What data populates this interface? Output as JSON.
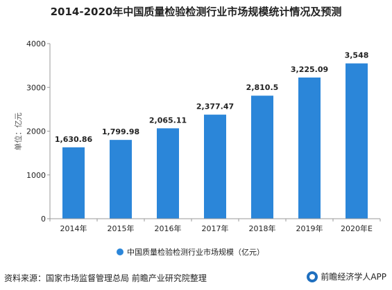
{
  "page": {
    "title": "2014-2020年中国质量检验检测行业市场规模统计情况及预测",
    "source": "资料来源：国家市场监督管理总局 前瞻产业研究院整理",
    "brand": "前瞻经济学人APP"
  },
  "colors": {
    "bar": "#2b86d9",
    "axis": "#999999",
    "grid": "#e6e6e6",
    "text": "#222222"
  },
  "chart_data": {
    "type": "bar",
    "title": "2014-2020年中国质量检验检测行业市场规模统计情况及预测",
    "ylabel": "单位：亿元",
    "ylim": [
      0,
      4000
    ],
    "yticks": [
      0,
      1000,
      2000,
      3000,
      4000
    ],
    "categories": [
      "2014年",
      "2015年",
      "2016年",
      "2017年",
      "2018年",
      "2019年",
      "2020年E"
    ],
    "series": [
      {
        "name": "中国质量检验检测行业市场规模（亿元）",
        "values": [
          1630.86,
          1799.98,
          2065.11,
          2377.47,
          2810.5,
          3225.09,
          3548
        ],
        "labels": [
          "1,630.86",
          "1,799.98",
          "2,065.11",
          "2,377.47",
          "2,810.5",
          "3,225.09",
          "3,548"
        ]
      }
    ],
    "legend": "bottom"
  }
}
